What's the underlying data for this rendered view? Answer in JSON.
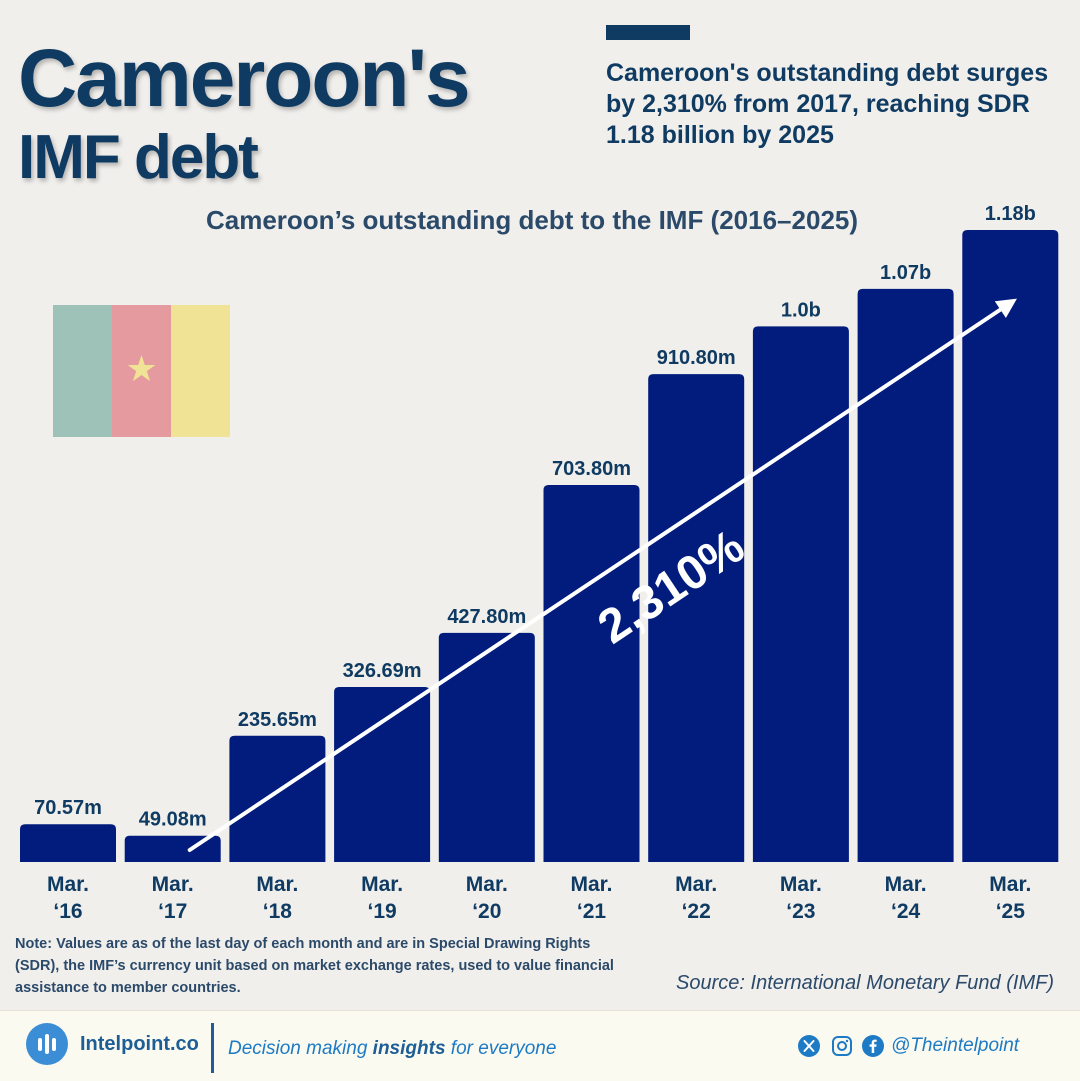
{
  "title": {
    "line1": "Cameroon's",
    "line2": "IMF debt"
  },
  "headline": "Cameroon's outstanding debt surges by 2,310% from 2017, reaching SDR 1.18 billion by 2025",
  "chart_data": {
    "type": "bar",
    "title": "Cameroon’s outstanding debt to the IMF (2016–2025)",
    "unit": "SDR",
    "categories": [
      [
        "Mar.",
        "‘16"
      ],
      [
        "Mar.",
        "‘17"
      ],
      [
        "Mar.",
        "‘18"
      ],
      [
        "Mar.",
        "‘19"
      ],
      [
        "Mar.",
        "‘20"
      ],
      [
        "Mar.",
        "‘21"
      ],
      [
        "Mar.",
        "‘22"
      ],
      [
        "Mar.",
        "‘23"
      ],
      [
        "Mar.",
        "‘24"
      ],
      [
        "Mar.",
        "‘25"
      ]
    ],
    "values": [
      70.57,
      49.08,
      235.65,
      326.69,
      427.8,
      703.8,
      910.8,
      1000,
      1070,
      1180
    ],
    "value_unit": "millions",
    "data_labels": [
      "70.57m",
      "49.08m",
      "235.65m",
      "326.69m",
      "427.80m",
      "703.80m",
      "910.80m",
      "1.0b",
      "1.07b",
      "1.18b"
    ],
    "ylim": [
      0,
      1180
    ],
    "annotation": {
      "text": "2,310%",
      "from_category": 1,
      "to_category": 9
    },
    "bar_color": "#011c7c",
    "grid": false,
    "legend": "none"
  },
  "note": "Note: Values are as of the last day of each month and are in Special Drawing Rights (SDR), the IMF’s currency unit based on market exchange rates, used to value financial assistance to member countries.",
  "source": "Source: International Monetary Fund (IMF)",
  "footer": {
    "brand": "Intelpoint.co",
    "tagline_pre": "Decision making ",
    "tagline_bold": "insights",
    "tagline_post": " for everyone",
    "handle": "@Theintelpoint",
    "icons": [
      "x-icon",
      "instagram-icon",
      "facebook-icon"
    ]
  },
  "colors": {
    "title": "#0f3b62",
    "bar": "#011c7c",
    "accent": "#1d7ac4",
    "background": "#f1efec"
  }
}
